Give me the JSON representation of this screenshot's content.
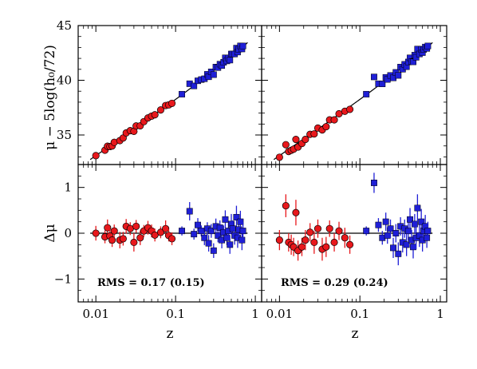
{
  "chart_data": {
    "type": "scatter",
    "layout": "2x2 shared axes",
    "xscale": "log",
    "xlim": [
      0.006,
      1.2
    ],
    "x_ticks": [
      {
        "value": 0.01,
        "label": "0.01"
      },
      {
        "value": 0.1,
        "label": "0.1"
      },
      {
        "value": 1,
        "label": "1"
      }
    ],
    "xlabel": "z",
    "top_row": {
      "ylabel": "μ − 5log(h₀/72)",
      "ylim": [
        32.3,
        45
      ],
      "y_ticks": [
        35,
        40,
        45
      ],
      "y_tick_labels": [
        "35",
        "40",
        "45"
      ]
    },
    "bottom_row": {
      "ylabel": "Δμ",
      "ylim": [
        -1.5,
        1.5
      ],
      "y_ticks": [
        -1,
        0,
        1
      ],
      "y_tick_labels": [
        "−1",
        "0",
        "1"
      ]
    },
    "colors": {
      "low_z": "#e8181c",
      "high_z": "#1f1fd6",
      "line": "#000000"
    },
    "marker_shapes": {
      "low_z": "circle",
      "high_z": "square"
    },
    "reference_curve": "distance modulus, flat cosmology",
    "columns": [
      {
        "rms_label": "RMS = 0.17 (0.15)",
        "low_z": {
          "z": [
            0.01,
            0.013,
            0.014,
            0.015,
            0.016,
            0.017,
            0.02,
            0.022,
            0.024,
            0.027,
            0.03,
            0.032,
            0.036,
            0.04,
            0.045,
            0.05,
            0.055,
            0.065,
            0.075,
            0.082,
            0.09
          ],
          "dmu": [
            0.0,
            -0.08,
            0.12,
            -0.06,
            -0.15,
            0.05,
            -0.15,
            -0.12,
            0.15,
            0.1,
            -0.2,
            0.15,
            -0.1,
            0.05,
            0.12,
            0.05,
            -0.04,
            0.02,
            0.1,
            -0.05,
            -0.12
          ],
          "err": [
            0.16,
            0.14,
            0.18,
            0.16,
            0.15,
            0.14,
            0.18,
            0.15,
            0.16,
            0.14,
            0.2,
            0.14,
            0.16,
            0.13,
            0.15,
            0.14,
            0.14,
            0.13,
            0.18,
            0.13,
            0.14
          ]
        },
        "high_z": {
          "z": [
            0.12,
            0.15,
            0.17,
            0.19,
            0.21,
            0.23,
            0.25,
            0.26,
            0.28,
            0.3,
            0.32,
            0.34,
            0.36,
            0.38,
            0.4,
            0.42,
            0.44,
            0.46,
            0.48,
            0.5,
            0.52,
            0.55,
            0.58,
            0.6,
            0.62,
            0.65,
            0.68,
            0.7
          ],
          "dmu": [
            0.05,
            0.48,
            -0.02,
            0.18,
            0.05,
            -0.1,
            0.1,
            -0.22,
            0.05,
            -0.38,
            0.15,
            -0.05,
            0.12,
            -0.15,
            0.02,
            0.3,
            -0.1,
            0.05,
            -0.25,
            0.2,
            0.1,
            -0.05,
            0.35,
            -0.1,
            0.08,
            0.25,
            -0.15,
            0.05
          ],
          "err": [
            0.1,
            0.2,
            0.12,
            0.15,
            0.12,
            0.16,
            0.14,
            0.18,
            0.15,
            0.16,
            0.17,
            0.15,
            0.16,
            0.18,
            0.15,
            0.2,
            0.16,
            0.18,
            0.2,
            0.22,
            0.18,
            0.2,
            0.25,
            0.22,
            0.2,
            0.24,
            0.22,
            0.2
          ]
        }
      },
      {
        "rms_label": "RMS = 0.29 (0.24)",
        "low_z": {
          "z": [
            0.01,
            0.012,
            0.013,
            0.014,
            0.015,
            0.016,
            0.017,
            0.019,
            0.021,
            0.024,
            0.027,
            0.03,
            0.034,
            0.038,
            0.042,
            0.048,
            0.055,
            0.065,
            0.075
          ],
          "dmu": [
            -0.15,
            0.6,
            -0.2,
            -0.25,
            -0.3,
            0.45,
            -0.38,
            -0.3,
            -0.15,
            0.02,
            -0.2,
            0.1,
            -0.35,
            -0.3,
            0.1,
            -0.2,
            0.05,
            -0.1,
            -0.25
          ],
          "err": [
            0.22,
            0.25,
            0.2,
            0.22,
            0.2,
            0.28,
            0.22,
            0.2,
            0.22,
            0.2,
            0.25,
            0.2,
            0.25,
            0.22,
            0.18,
            0.2,
            0.2,
            0.22,
            0.2
          ]
        },
        "high_z": {
          "z": [
            0.12,
            0.15,
            0.17,
            0.19,
            0.21,
            0.22,
            0.24,
            0.26,
            0.28,
            0.3,
            0.32,
            0.34,
            0.36,
            0.38,
            0.4,
            0.42,
            0.44,
            0.46,
            0.48,
            0.5,
            0.52,
            0.55,
            0.58,
            0.6,
            0.62,
            0.65,
            0.68,
            0.7
          ],
          "dmu": [
            0.05,
            1.1,
            0.18,
            -0.1,
            0.25,
            -0.05,
            0.1,
            -0.32,
            0.0,
            -0.45,
            0.15,
            -0.2,
            0.1,
            -0.25,
            0.05,
            0.3,
            -0.15,
            -0.3,
            0.2,
            -0.1,
            0.55,
            -0.05,
            0.25,
            -0.15,
            0.05,
            0.15,
            -0.1,
            0.05
          ],
          "err": [
            0.1,
            0.22,
            0.15,
            0.15,
            0.2,
            0.18,
            0.2,
            0.22,
            0.2,
            0.25,
            0.2,
            0.22,
            0.2,
            0.25,
            0.22,
            0.25,
            0.22,
            0.25,
            0.22,
            0.25,
            0.3,
            0.25,
            0.28,
            0.25,
            0.22,
            0.25,
            0.22,
            0.2
          ]
        }
      }
    ]
  }
}
